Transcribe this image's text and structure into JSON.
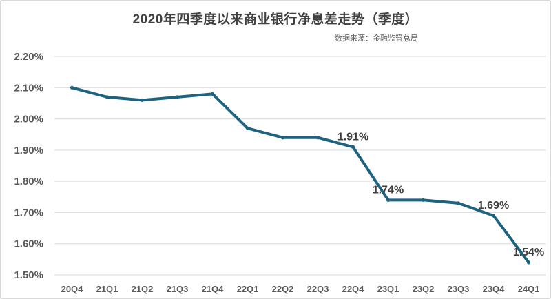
{
  "card": {
    "title": "2020年四季度以来商业银行净息差走势（季度）",
    "source_note": "数据来源：金融监管总局"
  },
  "chart_data": {
    "type": "line",
    "title": "2020年四季度以来商业银行净息差走势（季度）",
    "source": "数据来源：金融监管总局",
    "xlabel": "",
    "ylabel": "",
    "categories": [
      "20Q4",
      "21Q1",
      "21Q2",
      "21Q3",
      "21Q4",
      "22Q1",
      "22Q2",
      "22Q3",
      "22Q4",
      "23Q1",
      "23Q2",
      "23Q3",
      "23Q4",
      "24Q1"
    ],
    "series": [
      {
        "name": "商业银行净息差",
        "values": [
          2.1,
          2.07,
          2.06,
          2.07,
          2.08,
          1.97,
          1.94,
          1.94,
          1.91,
          1.74,
          1.74,
          1.73,
          1.69,
          1.54
        ]
      }
    ],
    "point_labels": [
      {
        "index": 8,
        "text": "1.91%"
      },
      {
        "index": 9,
        "text": "1.74%"
      },
      {
        "index": 12,
        "text": "1.69%"
      },
      {
        "index": 13,
        "text": "1.54%"
      }
    ],
    "y_axis": {
      "min": 1.5,
      "max": 2.2,
      "step": 0.1,
      "tick_labels": [
        "2.20%",
        "2.10%",
        "2.00%",
        "1.90%",
        "1.80%",
        "1.70%",
        "1.60%",
        "1.50%"
      ]
    },
    "grid": true,
    "legend": "none",
    "colors": {
      "line": "#1d627f",
      "grid": "#d9d9d9",
      "title_text": "#404040",
      "axis_text": "#595959",
      "point_label_text": "#404040",
      "background": "#ffffff",
      "border": "#d9d9d9"
    }
  }
}
